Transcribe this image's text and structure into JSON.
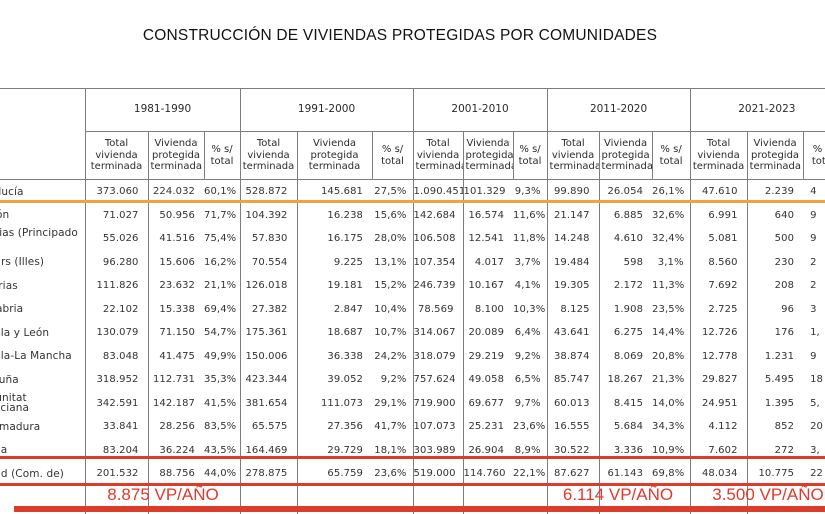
{
  "chart_data": {
    "type": "table",
    "title": "CONSTRUCCIÓN DE VIVIENDAS PROTEGIDAS POR COMUNIDADES",
    "column_groups": [
      "1981-1990",
      "1991-2000",
      "2001-2010",
      "2011-2020",
      "2021-2023"
    ],
    "sub_columns": [
      "Total vivienda terminada",
      "Vivienda protegida terminada",
      "% s/ total"
    ],
    "layout_hints": {
      "left_edge_truncated": true,
      "right_edge_truncated": true,
      "last_pct_column_values_partially_visible": true
    },
    "rows": [
      {
        "name": "Andalucía",
        "values": [
          "373.060",
          "224.032",
          "60,1%",
          "528.872",
          "145.681",
          "27,5%",
          "1.090.451",
          "101.329",
          "9,3%",
          "99.890",
          "26.054",
          "26,1%",
          "47.610",
          "2.239",
          "4"
        ]
      },
      {
        "name": "Aragón",
        "values": [
          "71.027",
          "50.956",
          "71,7%",
          "104.392",
          "16.238",
          "15,6%",
          "142.684",
          "16.574",
          "11,6%",
          "21.147",
          "6.885",
          "32,6%",
          "6.991",
          "640",
          "9"
        ]
      },
      {
        "name": "Asturias (Principado de)",
        "values": [
          "55.026",
          "41.516",
          "75,4%",
          "57.830",
          "16.175",
          "28,0%",
          "106.508",
          "12.541",
          "11,8%",
          "14.248",
          "4.610",
          "32,4%",
          "5.081",
          "500",
          "9"
        ]
      },
      {
        "name": "Balears (Illes)",
        "values": [
          "96.280",
          "15.606",
          "16,2%",
          "70.554",
          "9.225",
          "13,1%",
          "107.354",
          "4.017",
          "3,7%",
          "19.484",
          "598",
          "3,1%",
          "8.560",
          "230",
          "2"
        ]
      },
      {
        "name": "Canarias",
        "values": [
          "111.826",
          "23.632",
          "21,1%",
          "126.018",
          "19.181",
          "15,2%",
          "246.739",
          "10.167",
          "4,1%",
          "19.305",
          "2.172",
          "11,3%",
          "7.692",
          "208",
          "2"
        ]
      },
      {
        "name": "Cantabria",
        "values": [
          "22.102",
          "15.338",
          "69,4%",
          "27.382",
          "2.847",
          "10,4%",
          "78.569",
          "8.100",
          "10,3%",
          "8.125",
          "1.908",
          "23,5%",
          "2.725",
          "96",
          "3"
        ]
      },
      {
        "name": "Castilla y León",
        "values": [
          "130.079",
          "71.150",
          "54,7%",
          "175.361",
          "18.687",
          "10,7%",
          "314.067",
          "20.089",
          "6,4%",
          "43.641",
          "6.275",
          "14,4%",
          "12.726",
          "176",
          "1,"
        ]
      },
      {
        "name": "Castilla-La Mancha",
        "values": [
          "83.048",
          "41.475",
          "49,9%",
          "150.006",
          "36.338",
          "24,2%",
          "318.079",
          "29.219",
          "9,2%",
          "38.874",
          "8.069",
          "20,8%",
          "12.778",
          "1.231",
          "9"
        ]
      },
      {
        "name": "Cataluña",
        "values": [
          "318.952",
          "112.731",
          "35,3%",
          "423.344",
          "39.052",
          "9,2%",
          "757.624",
          "49.058",
          "6,5%",
          "85.747",
          "18.267",
          "21,3%",
          "29.827",
          "5.495",
          "18"
        ]
      },
      {
        "name": "Comunitat Valenciana",
        "values": [
          "342.591",
          "142.187",
          "41,5%",
          "381.654",
          "111.073",
          "29,1%",
          "719.900",
          "69.677",
          "9,7%",
          "60.013",
          "8.415",
          "14,0%",
          "24.951",
          "1.395",
          "5,"
        ]
      },
      {
        "name": "Extremadura",
        "values": [
          "33.841",
          "28.256",
          "83,5%",
          "65.575",
          "27.356",
          "41,7%",
          "107.073",
          "25.231",
          "23,6%",
          "16.555",
          "5.684",
          "34,3%",
          "4.112",
          "852",
          "20"
        ]
      },
      {
        "name": "Galicia",
        "values": [
          "83.204",
          "36.224",
          "43,5%",
          "164.469",
          "29.729",
          "18,1%",
          "303.989",
          "26.904",
          "8,9%",
          "30.522",
          "3.336",
          "10,9%",
          "7.602",
          "272",
          "3,"
        ]
      },
      {
        "name": "Madrid (Com. de)",
        "values": [
          "201.532",
          "88.756",
          "44,0%",
          "278.875",
          "65.759",
          "23,6%",
          "519.000",
          "114.760",
          "22,1%",
          "87.627",
          "61.143",
          "69,8%",
          "48.034",
          "10.775",
          "22"
        ]
      }
    ]
  },
  "annotations": {
    "highlighted_row_orange": "Andalucía",
    "highlighted_row_red": "Madrid (Com. de)",
    "vp_labels": [
      {
        "text": "8.875 VP/AÑO"
      },
      {
        "text": "6.114 VP/AÑO"
      },
      {
        "text": "3.500 VP/AÑO"
      }
    ],
    "colors": {
      "orange_highlight": "#F0A23E",
      "red_highlight": "#DC3C2A",
      "red_text": "#E5372B"
    }
  }
}
